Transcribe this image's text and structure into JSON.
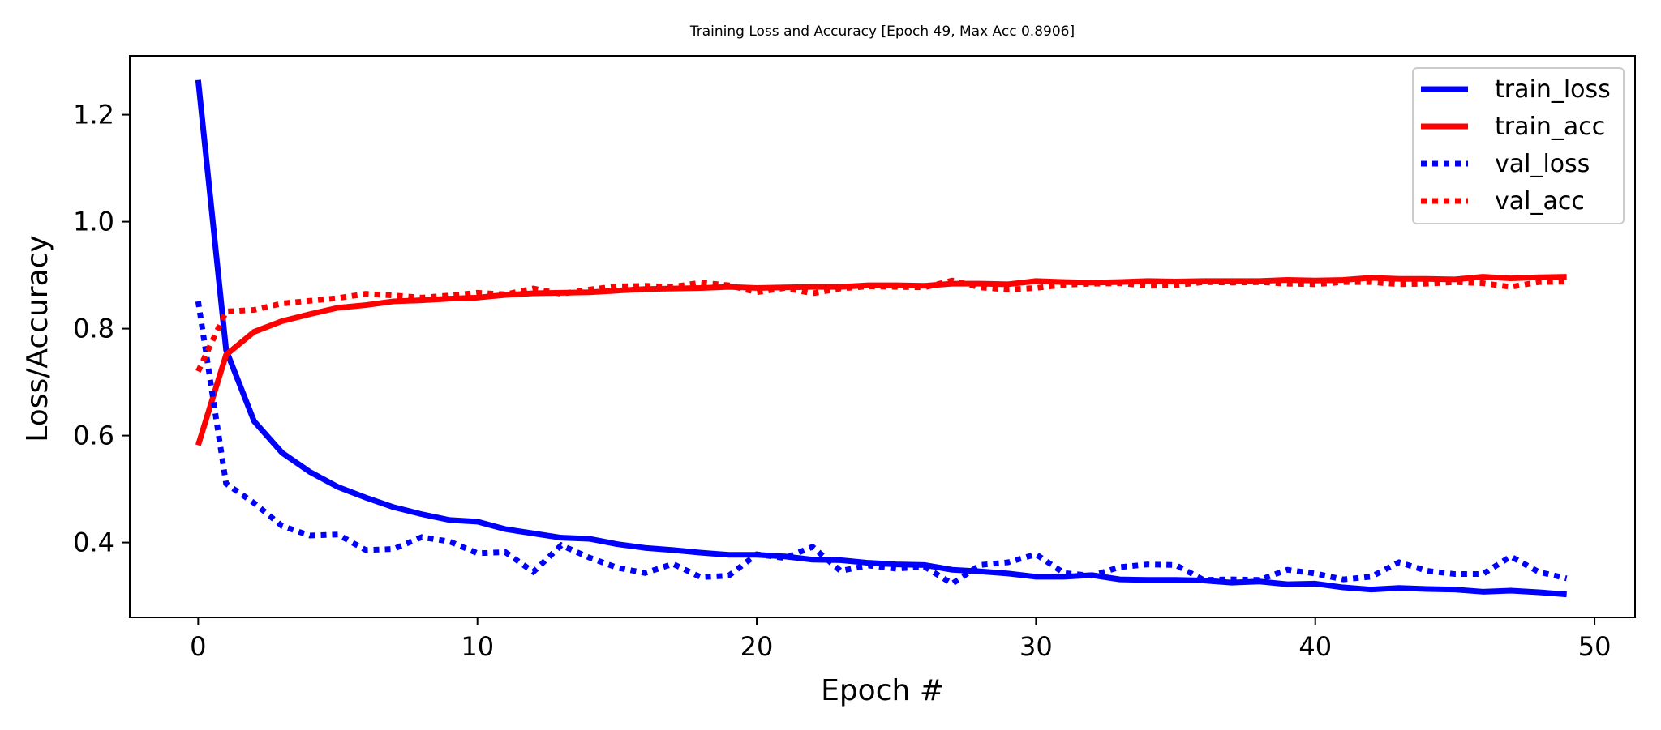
{
  "chart_data": {
    "type": "line",
    "title": "Training Loss and Accuracy [Epoch 49, Max Acc 0.8906]",
    "xlabel": "Epoch #",
    "ylabel": "Loss/Accuracy",
    "xlim": [
      -2.45,
      51.45
    ],
    "ylim": [
      0.26,
      1.31
    ],
    "xticks": [
      0,
      10,
      20,
      30,
      40,
      50
    ],
    "xtick_labels": [
      "0",
      "10",
      "20",
      "30",
      "40",
      "50"
    ],
    "yticks": [
      0.4,
      0.6,
      0.8,
      1.0,
      1.2
    ],
    "ytick_labels": [
      "0.4",
      "0.6",
      "0.8",
      "1.0",
      "1.2"
    ],
    "grid": false,
    "legend_position": "top-right",
    "x": [
      0,
      1,
      2,
      3,
      4,
      5,
      6,
      7,
      8,
      9,
      10,
      11,
      12,
      13,
      14,
      15,
      16,
      17,
      18,
      19,
      20,
      21,
      22,
      23,
      24,
      25,
      26,
      27,
      28,
      29,
      30,
      31,
      32,
      33,
      34,
      35,
      36,
      37,
      38,
      39,
      40,
      41,
      42,
      43,
      44,
      45,
      46,
      47,
      48,
      49
    ],
    "series": [
      {
        "name": "train_loss",
        "color": "#0000ff",
        "style": "solid",
        "values": [
          1.265,
          0.76,
          0.627,
          0.568,
          0.532,
          0.504,
          0.484,
          0.466,
          0.453,
          0.442,
          0.439,
          0.425,
          0.417,
          0.409,
          0.407,
          0.397,
          0.39,
          0.386,
          0.381,
          0.377,
          0.377,
          0.374,
          0.368,
          0.367,
          0.362,
          0.359,
          0.358,
          0.349,
          0.346,
          0.342,
          0.336,
          0.336,
          0.339,
          0.331,
          0.33,
          0.33,
          0.329,
          0.325,
          0.327,
          0.322,
          0.323,
          0.316,
          0.312,
          0.315,
          0.313,
          0.312,
          0.308,
          0.31,
          0.307,
          0.303
        ]
      },
      {
        "name": "train_acc",
        "color": "#ff0000",
        "style": "solid",
        "values": [
          0.582,
          0.751,
          0.794,
          0.814,
          0.827,
          0.839,
          0.844,
          0.851,
          0.853,
          0.856,
          0.858,
          0.863,
          0.866,
          0.867,
          0.868,
          0.871,
          0.874,
          0.875,
          0.876,
          0.878,
          0.876,
          0.877,
          0.878,
          0.878,
          0.881,
          0.881,
          0.88,
          0.884,
          0.884,
          0.883,
          0.889,
          0.887,
          0.886,
          0.887,
          0.889,
          0.888,
          0.889,
          0.889,
          0.889,
          0.891,
          0.89,
          0.891,
          0.895,
          0.893,
          0.893,
          0.892,
          0.897,
          0.894,
          0.896,
          0.897
        ]
      },
      {
        "name": "val_loss",
        "color": "#0000ff",
        "style": "dotted",
        "values": [
          0.851,
          0.51,
          0.474,
          0.431,
          0.413,
          0.415,
          0.386,
          0.388,
          0.41,
          0.402,
          0.38,
          0.382,
          0.345,
          0.395,
          0.372,
          0.353,
          0.343,
          0.36,
          0.335,
          0.338,
          0.378,
          0.371,
          0.392,
          0.347,
          0.357,
          0.351,
          0.355,
          0.323,
          0.358,
          0.363,
          0.378,
          0.343,
          0.338,
          0.354,
          0.359,
          0.358,
          0.33,
          0.331,
          0.33,
          0.349,
          0.342,
          0.331,
          0.336,
          0.363,
          0.347,
          0.341,
          0.341,
          0.374,
          0.345,
          0.333
        ]
      },
      {
        "name": "val_acc",
        "color": "#ff0000",
        "style": "dotted",
        "values": [
          0.72,
          0.832,
          0.835,
          0.847,
          0.852,
          0.857,
          0.865,
          0.862,
          0.858,
          0.862,
          0.867,
          0.864,
          0.875,
          0.865,
          0.873,
          0.879,
          0.88,
          0.878,
          0.886,
          0.881,
          0.868,
          0.876,
          0.866,
          0.875,
          0.879,
          0.878,
          0.877,
          0.89,
          0.877,
          0.873,
          0.876,
          0.882,
          0.884,
          0.885,
          0.88,
          0.881,
          0.887,
          0.886,
          0.887,
          0.884,
          0.883,
          0.887,
          0.887,
          0.883,
          0.884,
          0.887,
          0.885,
          0.878,
          0.887,
          0.888
        ]
      }
    ]
  }
}
